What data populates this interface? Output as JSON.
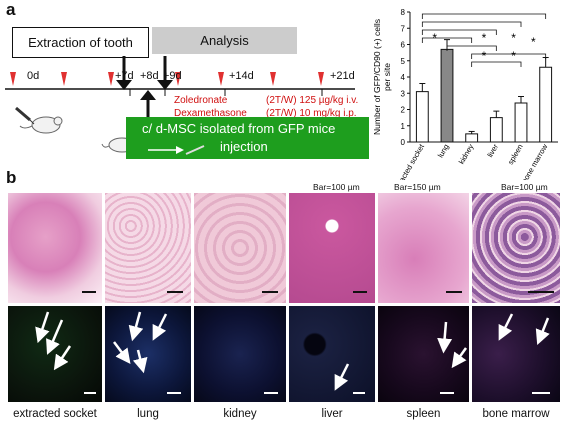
{
  "panel_a": {
    "letter": "a",
    "extraction_label": "Extraction of tooth",
    "analysis_label": "Analysis",
    "timeline_ticks": [
      "0d",
      "+7d",
      "+8d",
      "+9d",
      "+14d",
      "+21d"
    ],
    "drug_names": [
      "Zoledronate",
      "Dexamethasone"
    ],
    "drug_doses": [
      "(2T/W) 125 µg/kg i.v.",
      "(2T/W) 10 mg/kg i.p."
    ],
    "msc_line1": "c/ d-MSC isolated from GFP mice",
    "msc_line2": "injection",
    "colors": {
      "analysis_box": "#cccccc",
      "msc_box": "#1e9e1e",
      "marker": "#e03030",
      "drug_text": "#d01010"
    }
  },
  "panel_b": {
    "letter": "b",
    "scale_labels": [
      "Bar=100 µm",
      "Bar=150 µm",
      "Bar=100 µm"
    ],
    "tissues": [
      "extracted socket",
      "lung",
      "kidney",
      "liver",
      "spleen",
      "bone marrow"
    ]
  },
  "chart_data": {
    "type": "bar",
    "ylabel": "Number of GFP/CD90 (+) cells per site",
    "ylim": [
      0,
      8
    ],
    "yticks": [
      "0",
      "1",
      "2",
      "3",
      "4",
      "5",
      "6",
      "7",
      "8"
    ],
    "categories": [
      "extracted socket",
      "lung",
      "kidney",
      "liver",
      "spleen",
      "bone marrow"
    ],
    "values": [
      3.1,
      5.7,
      0.5,
      1.5,
      2.4,
      4.6
    ],
    "errors": [
      0.5,
      0.6,
      0.15,
      0.4,
      0.4,
      0.6
    ],
    "bar_colors": [
      "#ffffff",
      "#888888",
      "#ffffff",
      "#ffffff",
      "#ffffff",
      "#ffffff"
    ],
    "significance_marker": "*",
    "grid": false,
    "legend": "none"
  }
}
